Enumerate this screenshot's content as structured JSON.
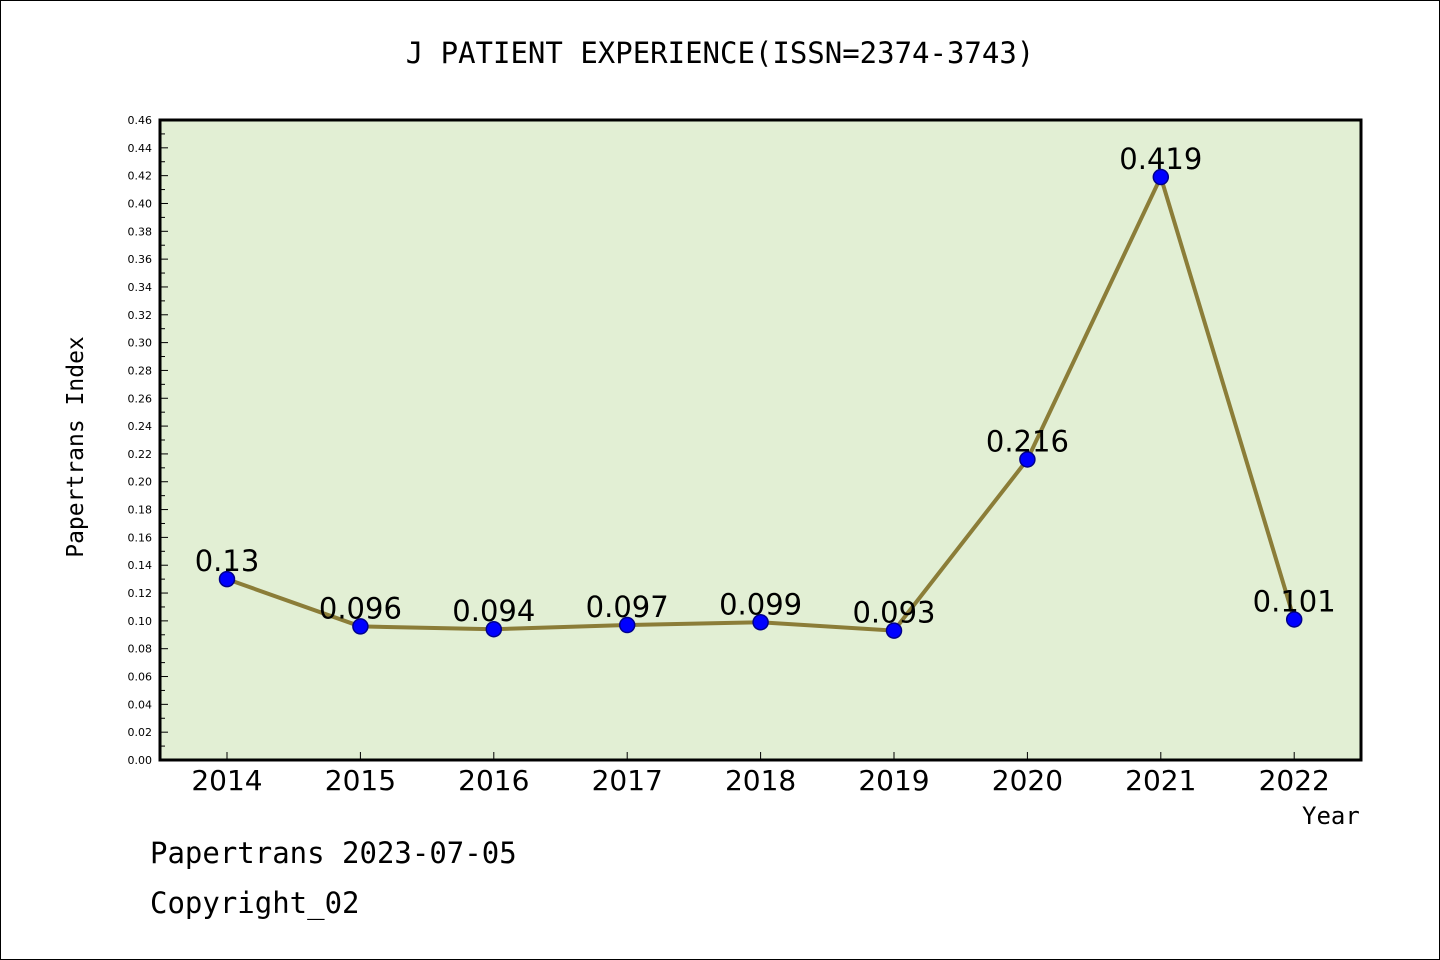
{
  "title": "J PATIENT EXPERIENCE(ISSN=2374-3743)",
  "footer": {
    "line1": "Papertrans 2023-07-05",
    "line2": "Copyright_02"
  },
  "colors": {
    "plot_background": "#e2efd4",
    "line": "#8b7d38",
    "marker": "#0000ff",
    "marker_edge": "#00008b"
  },
  "chart_data": {
    "type": "line",
    "title": "J PATIENT EXPERIENCE(ISSN=2374-3743)",
    "xlabel": "Year",
    "ylabel": "Papertrans Index",
    "categories": [
      "2014",
      "2015",
      "2016",
      "2017",
      "2018",
      "2019",
      "2020",
      "2021",
      "2022"
    ],
    "values": [
      0.13,
      0.096,
      0.094,
      0.097,
      0.099,
      0.093,
      0.216,
      0.419,
      0.101
    ],
    "data_labels": [
      "0.13",
      "0.096",
      "0.094",
      "0.097",
      "0.099",
      "0.093",
      "0.216",
      "0.419",
      "0.101"
    ],
    "ylim": [
      0,
      0.46
    ],
    "ytick_step": 0.02,
    "grid": false,
    "legend": "none"
  }
}
